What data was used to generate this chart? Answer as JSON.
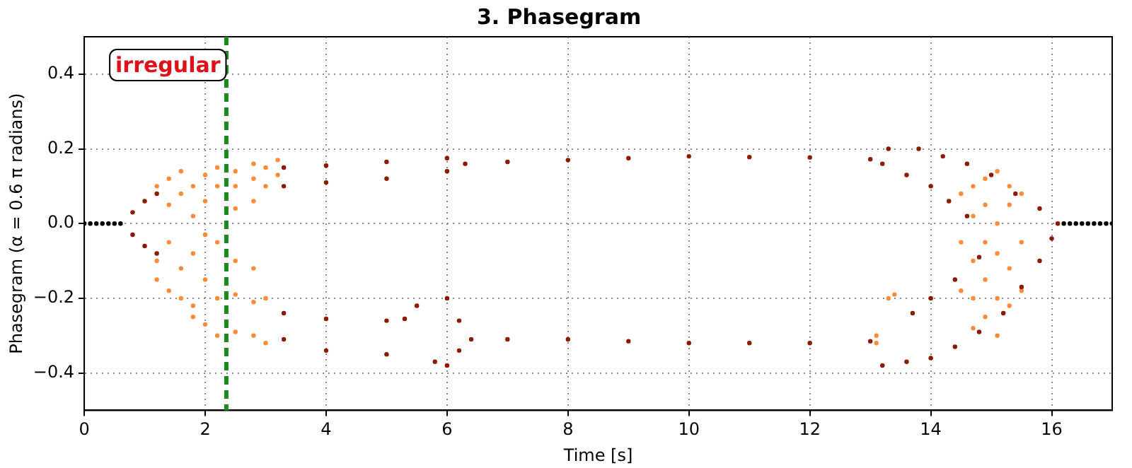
{
  "chart_data": {
    "type": "scatter",
    "title": "3. Phasegram",
    "xlabel": "Time [s]",
    "ylabel": "Phasegram (α = 0.6 π radians)",
    "annotations": [
      "irregular"
    ],
    "xlim": [
      0,
      17
    ],
    "xticks": [
      0,
      2,
      4,
      6,
      8,
      10,
      12,
      14,
      16
    ],
    "ylim": [
      -0.5,
      0.5
    ],
    "yticks": [
      {
        "value": -0.4,
        "label": "−0.4"
      },
      {
        "value": -0.2,
        "label": "−0.2"
      },
      {
        "value": 0,
        "label": "0.0"
      },
      {
        "value": 0.2,
        "label": "0.2"
      },
      {
        "value": 0.4,
        "label": "0.4"
      }
    ],
    "grid": true,
    "marker": "circle",
    "ref_lines": [
      {
        "axis": "x",
        "value": 2.35,
        "color": "#1a8a1a",
        "line_style": "dashed"
      }
    ],
    "series": [
      {
        "color": "#000000",
        "x": [
          0,
          0.1,
          0.2,
          0.3,
          0.4,
          0.5,
          0.6,
          16.2,
          16.3,
          16.4,
          16.5,
          16.6,
          16.7,
          16.8,
          16.9,
          17
        ],
        "values": [
          0,
          0,
          0,
          0,
          0,
          0,
          0,
          0,
          0,
          0,
          0,
          0,
          0,
          0,
          0,
          0
        ]
      },
      {
        "color": "#8b1a00",
        "x": [
          0.8,
          1.0,
          1.2,
          3.3,
          4,
          5,
          6,
          6.3,
          7,
          8,
          9,
          10,
          11,
          12,
          13,
          3.3,
          4,
          5,
          6,
          0.8,
          1.0,
          1.2,
          3.3,
          4,
          5,
          5.3,
          5.5,
          6,
          6.2,
          6.4,
          3.3,
          4,
          5,
          5.8,
          6,
          6.2,
          7,
          8,
          9,
          10,
          11,
          12,
          13,
          13.3,
          13.8,
          14.2,
          14.6,
          15,
          15.4,
          15.8,
          16.1,
          13.2,
          13.6,
          14,
          14.3,
          14.6,
          13.2,
          13.6,
          14,
          14.4,
          14.8,
          15.2,
          15.5,
          15.8,
          16,
          13.7,
          14,
          14.4,
          14.8
        ],
        "values": [
          0.03,
          0.06,
          0.08,
          0.15,
          0.155,
          0.165,
          0.175,
          0.16,
          0.165,
          0.17,
          0.175,
          0.18,
          0.178,
          0.177,
          0.172,
          0.1,
          0.11,
          0.12,
          0.14,
          -0.03,
          -0.06,
          -0.08,
          -0.24,
          -0.255,
          -0.26,
          -0.255,
          -0.22,
          -0.2,
          -0.26,
          -0.31,
          -0.31,
          -0.34,
          -0.35,
          -0.37,
          -0.38,
          -0.34,
          -0.31,
          -0.31,
          -0.315,
          -0.32,
          -0.32,
          -0.32,
          -0.315,
          0.2,
          0.2,
          0.18,
          0.16,
          0.13,
          0.08,
          0.04,
          0,
          0.16,
          0.13,
          0.1,
          0.06,
          0.02,
          -0.38,
          -0.37,
          -0.36,
          -0.33,
          -0.29,
          -0.24,
          -0.17,
          -0.1,
          -0.04,
          -0.24,
          -0.2,
          -0.15,
          -0.09
        ]
      },
      {
        "color": "#ff8c3a",
        "x": [
          1.2,
          1.2,
          1.2,
          1.4,
          1.4,
          1.4,
          1.4,
          1.6,
          1.6,
          1.6,
          1.6,
          1.8,
          1.8,
          1.8,
          1.8,
          1.8,
          2,
          2,
          2,
          2,
          2,
          2.2,
          2.2,
          2.2,
          2.2,
          2.2,
          2.5,
          2.5,
          2.5,
          2.5,
          2.5,
          2.5,
          2.8,
          2.8,
          2.8,
          2.8,
          2.8,
          2.8,
          3,
          3,
          3,
          3,
          3.2,
          3.2,
          14.5,
          14.5,
          14.5,
          14.7,
          14.7,
          14.7,
          14.7,
          14.7,
          14.9,
          14.9,
          14.9,
          14.9,
          14.9,
          15.1,
          15.1,
          15.1,
          15.1,
          15.1,
          15.3,
          15.3,
          15.3,
          15.3,
          15.5,
          15.5,
          15.5,
          13.3,
          13.4,
          13.1,
          13.1
        ],
        "values": [
          0.1,
          -0.1,
          -0.15,
          0.12,
          0.05,
          -0.05,
          -0.18,
          0.08,
          0.14,
          -0.12,
          -0.2,
          0.1,
          0.02,
          -0.08,
          -0.22,
          -0.25,
          0.13,
          0.06,
          -0.03,
          -0.15,
          -0.27,
          0.15,
          0.1,
          -0.05,
          -0.2,
          -0.3,
          0.14,
          0.1,
          0.04,
          -0.1,
          -0.19,
          -0.29,
          0.16,
          0.12,
          0.06,
          -0.12,
          -0.21,
          -0.3,
          0.15,
          0.1,
          -0.2,
          -0.32,
          0.13,
          0.17,
          0.08,
          -0.05,
          -0.18,
          0.1,
          0.02,
          -0.1,
          -0.2,
          -0.28,
          0.12,
          0.05,
          -0.05,
          -0.15,
          -0.25,
          0.14,
          0,
          -0.08,
          -0.2,
          -0.3,
          0.1,
          0.05,
          -0.12,
          -0.22,
          0.08,
          -0.05,
          -0.18,
          -0.2,
          -0.19,
          -0.3,
          -0.32
        ]
      }
    ]
  }
}
